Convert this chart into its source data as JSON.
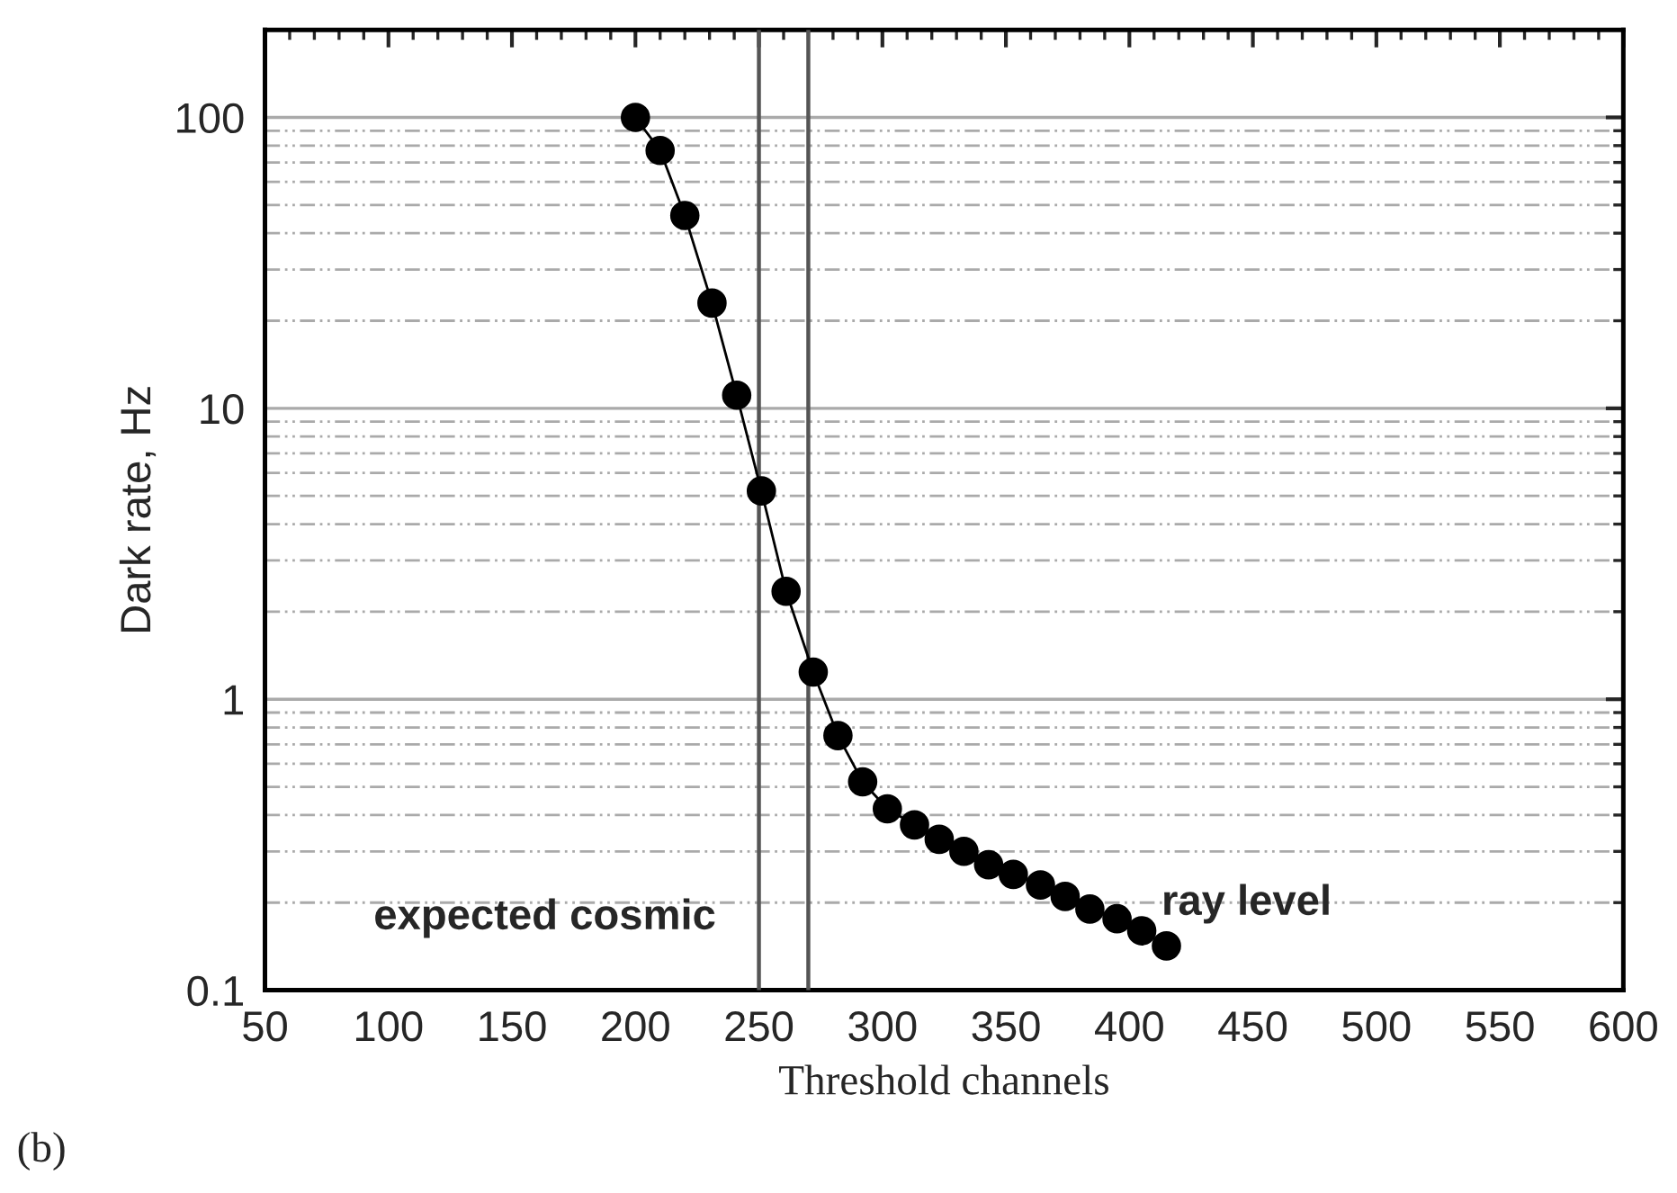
{
  "chart_data": {
    "type": "line",
    "xlabel": "Threshold channels",
    "ylabel": "Dark rate, Hz",
    "x": [
      200,
      210,
      220,
      231,
      241,
      251,
      261,
      272,
      282,
      292,
      302,
      313,
      323,
      333,
      343,
      353,
      364,
      374,
      384,
      395,
      405,
      415
    ],
    "series": [
      {
        "color": "#000000",
        "values": [
          100,
          77,
          46,
          23,
          11.1,
          5.2,
          2.35,
          1.24,
          0.75,
          0.52,
          0.42,
          0.37,
          0.33,
          0.3,
          0.27,
          0.25,
          0.23,
          0.21,
          0.19,
          0.176,
          0.16,
          0.142
        ]
      }
    ],
    "log": "y",
    "xlim": [
      50,
      600
    ],
    "xticks": [
      50,
      100,
      150,
      200,
      250,
      300,
      350,
      400,
      450,
      500,
      550,
      600
    ],
    "ylim": [
      0.1,
      200
    ],
    "yticks": [
      0.1,
      1,
      10,
      100
    ],
    "grid": "y",
    "marker": "circle",
    "line_style": "solid",
    "ref_lines": [
      {
        "axis": "x",
        "value": 250,
        "color": "#555555"
      },
      {
        "axis": "x",
        "value": 270,
        "color": "#555555"
      }
    ],
    "annotations": [
      "expected cosmic",
      "ray level",
      "(b)"
    ]
  }
}
